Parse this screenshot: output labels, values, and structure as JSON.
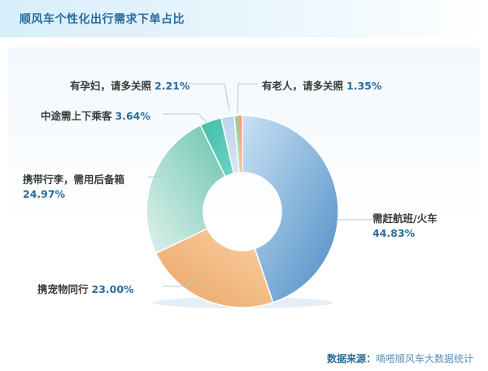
{
  "header": {
    "title": "顺风车个性化出行需求下单占比"
  },
  "chart_data": {
    "type": "pie",
    "subtype": "donut",
    "categories": [
      "需赶航班/火车",
      "携宠物同行",
      "携带行李，需用后备箱",
      "中途需上下乘客",
      "有孕妇，请多关照",
      "有老人，请多关照"
    ],
    "values": [
      44.83,
      23.0,
      24.97,
      3.64,
      2.21,
      1.35
    ],
    "labels": [
      "44.83%",
      "23.00%",
      "24.97%",
      "3.64%",
      "2.21%",
      "1.35%"
    ],
    "colors": [
      "#6a9fd0",
      "#eba86a",
      "#8ecfc0",
      "#4ec4b4",
      "#c2d6ea",
      "#9fd6a4",
      "#f0a882"
    ],
    "order_clockwise_from_top": [
      "需赶航班/火车",
      "携宠物同行",
      "携带行李，需用后备箱",
      "中途需上下乘客",
      "有孕妇，请多关照",
      "有老人，请多关照"
    ]
  },
  "source": {
    "label": "数据来源：",
    "value": "嘀嗒顺风车大数据统计"
  }
}
